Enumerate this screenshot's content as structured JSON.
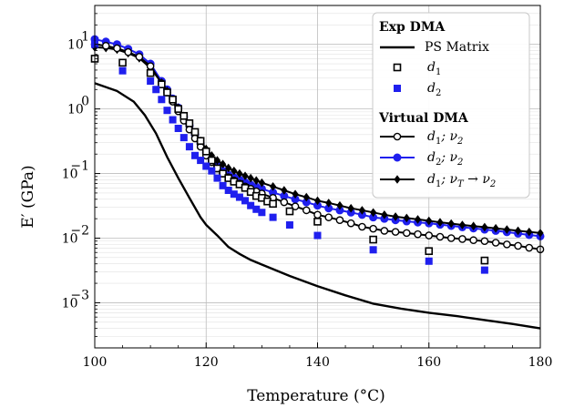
{
  "chart_data": {
    "type": "line",
    "xlabel": "Temperature (°C)",
    "ylabel": "E′ (GPa)",
    "xlim": [
      100,
      180
    ],
    "ylim": [
      0.0002,
      40
    ],
    "yscale": "log",
    "grid": true,
    "legend_position": "top-right",
    "xticks": [
      "100",
      "120",
      "140",
      "160",
      "180"
    ],
    "yticks": [
      {
        "base": "10",
        "exp": "1"
      },
      {
        "base": "10",
        "exp": "0"
      },
      {
        "base": "10",
        "exp": "−1"
      },
      {
        "base": "10",
        "exp": "−2"
      },
      {
        "base": "10",
        "exp": "−3"
      }
    ],
    "legend": {
      "exp_header": "Exp DMA",
      "virtual_header": "Virtual DMA",
      "entries": [
        {
          "text": "PS Matrix"
        },
        {
          "text": "d",
          "sub": "1"
        },
        {
          "text": "d",
          "sub": "2"
        },
        {
          "text": "d",
          "sub": "1",
          "suffix": "; ν",
          "suffix_sub": "2"
        },
        {
          "text": "d",
          "sub": "2",
          "suffix": "; ν",
          "suffix_sub": "2"
        },
        {
          "text": "d",
          "sub": "1",
          "suffix": "; ν",
          "suffix_sub": "T",
          "arrow": " → ν",
          "arrow_sub": "2"
        }
      ]
    },
    "series": [
      {
        "name": "PS Matrix",
        "style": "line",
        "color": "#000000",
        "x": [
          100,
          104,
          107,
          109,
          111,
          113,
          115,
          117,
          119,
          120,
          122,
          124,
          126,
          128,
          130,
          135,
          140,
          145,
          150,
          155,
          160,
          165,
          170,
          175,
          180
        ],
        "y": [
          2.5,
          1.9,
          1.3,
          0.8,
          0.42,
          0.18,
          0.085,
          0.042,
          0.021,
          0.016,
          0.011,
          0.0073,
          0.0057,
          0.0046,
          0.0039,
          0.0026,
          0.0018,
          0.0013,
          0.00097,
          0.00081,
          0.0007,
          0.00062,
          0.00054,
          0.00047,
          0.0004
        ]
      },
      {
        "name": "d1 (Exp DMA)",
        "style": "open-square",
        "color": "#000000",
        "x": [
          100,
          105,
          110,
          112,
          113,
          114,
          115,
          116,
          117,
          118,
          119,
          120,
          121,
          122,
          123,
          124,
          125,
          126,
          127,
          128,
          129,
          130,
          131,
          132,
          135,
          140,
          150,
          160,
          170
        ],
        "y": [
          6,
          5.2,
          3.6,
          2.4,
          1.8,
          1.4,
          1.0,
          0.78,
          0.6,
          0.44,
          0.32,
          0.22,
          0.16,
          0.12,
          0.1,
          0.085,
          0.075,
          0.068,
          0.06,
          0.052,
          0.045,
          0.042,
          0.037,
          0.034,
          0.026,
          0.018,
          0.0095,
          0.0063,
          0.0045
        ]
      },
      {
        "name": "d2 (Exp DMA)",
        "style": "filled-square",
        "color": "#1f1fee",
        "x": [
          100,
          105,
          110,
          111,
          112,
          113,
          114,
          115,
          116,
          117,
          118,
          119,
          120,
          121,
          122,
          123,
          124,
          125,
          126,
          127,
          128,
          129,
          130,
          132,
          135,
          140,
          150,
          160,
          170
        ],
        "y": [
          10,
          3.9,
          2.7,
          2.0,
          1.4,
          0.95,
          0.68,
          0.5,
          0.36,
          0.26,
          0.19,
          0.16,
          0.13,
          0.11,
          0.085,
          0.065,
          0.055,
          0.048,
          0.043,
          0.038,
          0.032,
          0.028,
          0.025,
          0.021,
          0.016,
          0.011,
          0.0066,
          0.0044,
          0.0032
        ]
      },
      {
        "name": "d1; ν2 (Virtual DMA)",
        "style": "line-open-circle",
        "color": "#000000",
        "x": [
          100,
          102,
          104,
          106,
          108,
          110,
          112,
          113,
          114,
          115,
          116,
          117,
          118,
          119,
          120,
          121,
          122,
          123,
          124,
          125,
          126,
          127,
          128,
          129,
          130,
          132,
          134,
          136,
          138,
          140,
          142,
          144,
          146,
          148,
          150,
          152,
          154,
          156,
          158,
          160,
          162,
          164,
          166,
          168,
          170,
          172,
          174,
          176,
          178,
          180
        ],
        "y": [
          10,
          9.5,
          8.7,
          7.6,
          6.4,
          4.6,
          2.5,
          1.8,
          1.3,
          0.92,
          0.66,
          0.48,
          0.35,
          0.26,
          0.19,
          0.15,
          0.12,
          0.1,
          0.088,
          0.078,
          0.07,
          0.063,
          0.058,
          0.053,
          0.049,
          0.042,
          0.036,
          0.031,
          0.027,
          0.023,
          0.021,
          0.019,
          0.017,
          0.015,
          0.014,
          0.013,
          0.0125,
          0.012,
          0.0115,
          0.011,
          0.0105,
          0.01,
          0.0097,
          0.0093,
          0.009,
          0.0085,
          0.008,
          0.0076,
          0.0071,
          0.0067
        ]
      },
      {
        "name": "d2; ν2 (Virtual DMA)",
        "style": "line-filled-circle",
        "color": "#1f1fee",
        "x": [
          100,
          102,
          104,
          106,
          108,
          110,
          112,
          113,
          114,
          115,
          116,
          117,
          118,
          119,
          120,
          121,
          122,
          123,
          124,
          125,
          126,
          127,
          128,
          129,
          130,
          132,
          134,
          136,
          138,
          140,
          142,
          144,
          146,
          148,
          150,
          152,
          154,
          156,
          158,
          160,
          162,
          164,
          166,
          168,
          170,
          172,
          174,
          176,
          178,
          180
        ],
        "y": [
          12,
          11,
          10,
          8.5,
          7,
          5,
          2.7,
          2.0,
          1.45,
          1.05,
          0.75,
          0.55,
          0.4,
          0.29,
          0.21,
          0.16,
          0.13,
          0.11,
          0.096,
          0.087,
          0.08,
          0.073,
          0.067,
          0.062,
          0.058,
          0.051,
          0.045,
          0.04,
          0.036,
          0.032,
          0.029,
          0.027,
          0.025,
          0.023,
          0.021,
          0.02,
          0.019,
          0.0182,
          0.0175,
          0.017,
          0.0162,
          0.0155,
          0.0148,
          0.0142,
          0.0136,
          0.013,
          0.0124,
          0.0118,
          0.0112,
          0.0107
        ]
      },
      {
        "name": "d1; νT → ν2 (Virtual DMA)",
        "style": "line-diamond",
        "color": "#000000",
        "x": [
          100,
          102,
          104,
          106,
          108,
          110,
          112,
          113,
          114,
          115,
          116,
          117,
          118,
          119,
          120,
          121,
          122,
          123,
          124,
          125,
          126,
          127,
          128,
          129,
          130,
          132,
          134,
          136,
          138,
          140,
          142,
          144,
          146,
          148,
          150,
          152,
          154,
          156,
          158,
          160,
          162,
          164,
          166,
          168,
          170,
          172,
          174,
          176,
          178,
          180
        ],
        "y": [
          9,
          8.8,
          8.3,
          7.3,
          6.1,
          4.3,
          2.55,
          1.9,
          1.4,
          1.05,
          0.78,
          0.58,
          0.43,
          0.32,
          0.24,
          0.19,
          0.16,
          0.14,
          0.122,
          0.11,
          0.1,
          0.092,
          0.085,
          0.078,
          0.072,
          0.063,
          0.055,
          0.048,
          0.043,
          0.038,
          0.035,
          0.032,
          0.029,
          0.027,
          0.025,
          0.023,
          0.0215,
          0.0205,
          0.0195,
          0.0185,
          0.0176,
          0.0168,
          0.016,
          0.0154,
          0.0148,
          0.0142,
          0.0136,
          0.013,
          0.0125,
          0.012
        ]
      }
    ]
  }
}
